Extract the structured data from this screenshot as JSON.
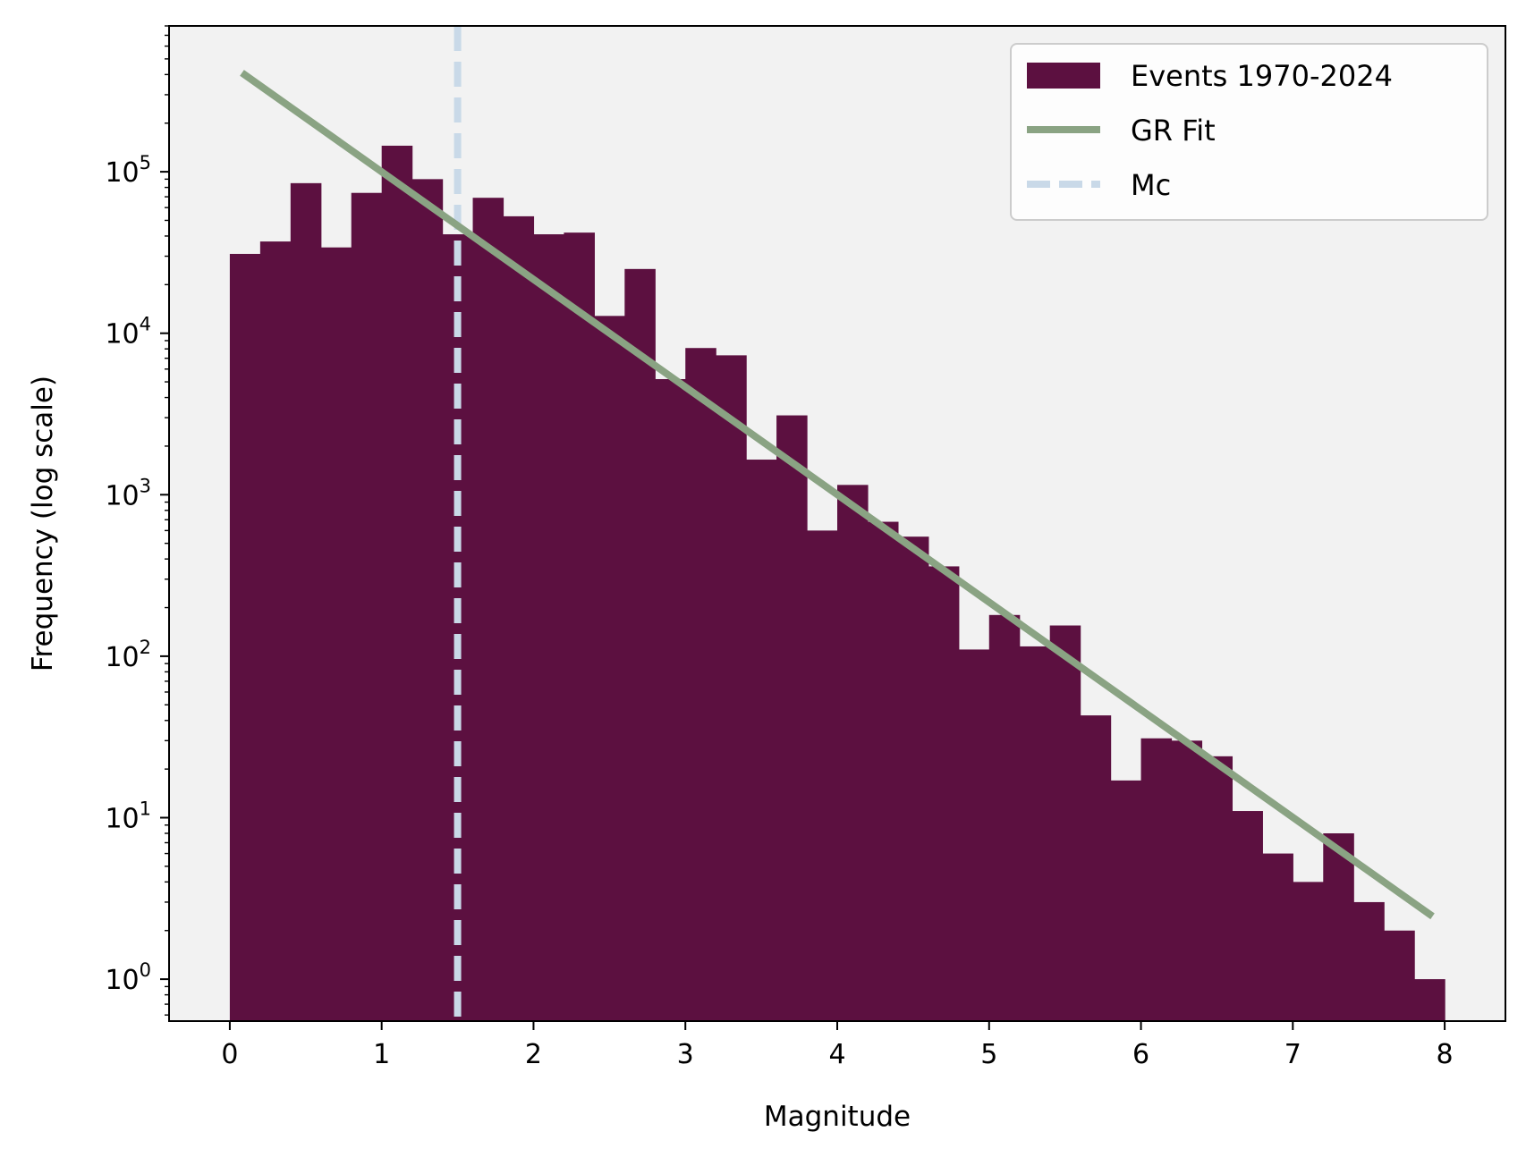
{
  "chart_data": {
    "type": "bar",
    "title": "",
    "xlabel": "Magnitude",
    "ylabel": "Frequency (log scale)",
    "xlim": [
      -0.4,
      8.4
    ],
    "ylim": [
      0.55,
      800000
    ],
    "yscale": "log",
    "bin_width": 0.2,
    "x_ticks": [
      0,
      1,
      2,
      3,
      4,
      5,
      6,
      7,
      8
    ],
    "y_ticks": [
      {
        "value": 1,
        "base": "10",
        "exp": "0"
      },
      {
        "value": 10,
        "base": "10",
        "exp": "1"
      },
      {
        "value": 100,
        "base": "10",
        "exp": "2"
      },
      {
        "value": 1000,
        "base": "10",
        "exp": "3"
      },
      {
        "value": 10000,
        "base": "10",
        "exp": "4"
      },
      {
        "value": 100000,
        "base": "10",
        "exp": "5"
      }
    ],
    "series": [
      {
        "name": "Events 1970-2024",
        "kind": "histogram",
        "color": "#5c1040",
        "bin_edges": [
          0.0,
          0.2,
          0.4,
          0.6,
          0.8,
          1.0,
          1.2,
          1.4,
          1.6,
          1.8,
          2.0,
          2.2,
          2.4,
          2.6,
          2.8,
          3.0,
          3.2,
          3.4,
          3.6,
          3.8,
          4.0,
          4.2,
          4.4,
          4.6,
          4.8,
          5.0,
          5.2,
          5.4,
          5.6,
          5.8,
          6.0,
          6.2,
          6.4,
          6.6,
          6.8,
          7.0,
          7.2,
          7.4,
          7.6,
          7.8,
          8.0
        ],
        "values": [
          31000,
          37000,
          85000,
          34000,
          74000,
          145000,
          90000,
          41000,
          69000,
          53000,
          41000,
          42000,
          12800,
          25000,
          5200,
          8100,
          7300,
          1650,
          3100,
          600,
          1150,
          680,
          550,
          360,
          110,
          180,
          115,
          155,
          43,
          17,
          31,
          30,
          24,
          11,
          6,
          4,
          8,
          3,
          2,
          1
        ]
      },
      {
        "name": "GR Fit",
        "kind": "line",
        "color": "#8aa383",
        "x": [
          0.08,
          7.92
        ],
        "y": [
          410000,
          2.45
        ]
      },
      {
        "name": "Mc",
        "kind": "vline",
        "color": "#c9d9e8",
        "x": 1.5
      }
    ],
    "legend": {
      "position": "top-right",
      "entries": [
        "Events 1970-2024",
        "GR Fit",
        "Mc"
      ]
    },
    "grid": false,
    "background": "#f2f2f2"
  }
}
